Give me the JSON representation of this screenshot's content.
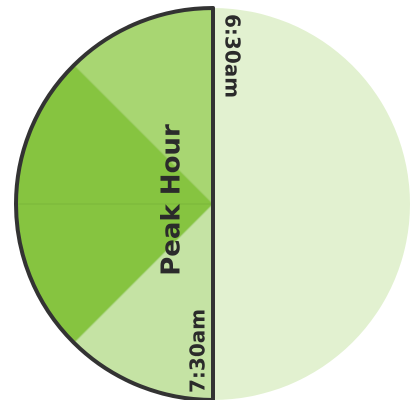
{
  "diagram": {
    "title": "Peak Hour",
    "start_time": "6:30am",
    "end_time": "7:30am",
    "colors": {
      "right_half": "#e2f1d0",
      "outer_wedge": "#a8d672",
      "peak_wedge": "#86c440",
      "lower_wedge": "#c5e3a4",
      "outline": "#333333",
      "text": "#2b2b2b"
    }
  }
}
